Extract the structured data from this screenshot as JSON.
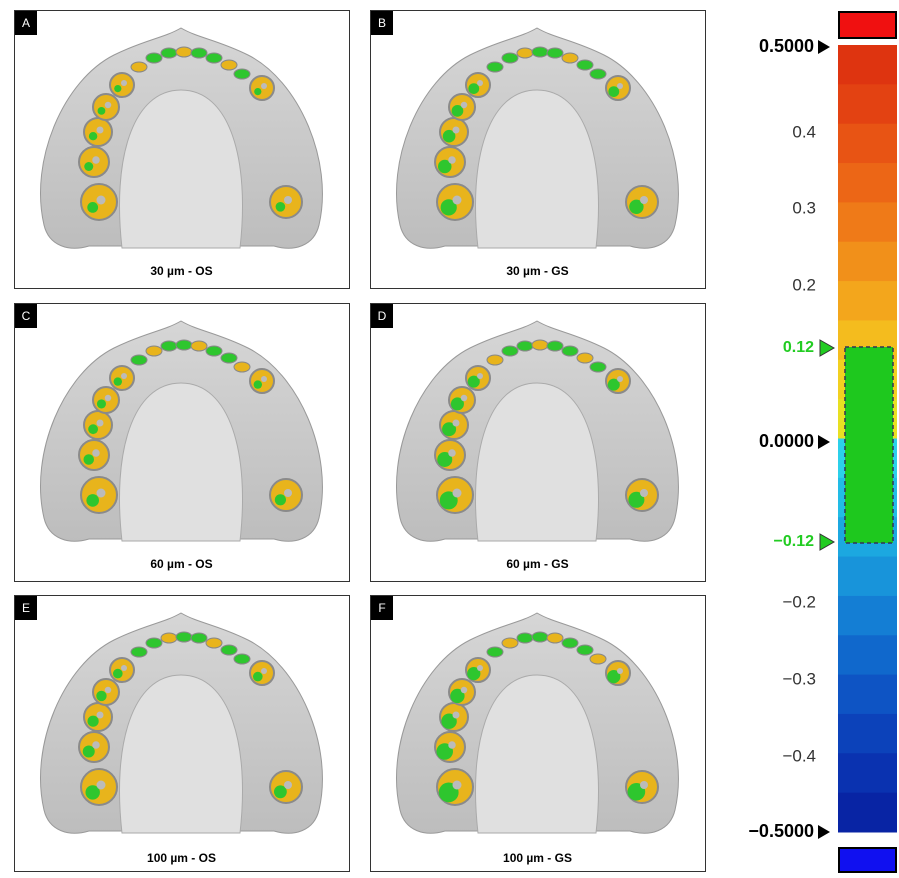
{
  "panels": [
    {
      "letter": "A",
      "caption": "30 µm - OS"
    },
    {
      "letter": "B",
      "caption": "30 µm - GS"
    },
    {
      "letter": "C",
      "caption": "60 µm - OS"
    },
    {
      "letter": "D",
      "caption": "60 µm - GS"
    },
    {
      "letter": "E",
      "caption": "100 µm - OS"
    },
    {
      "letter": "F",
      "caption": "100 µm - GS"
    }
  ],
  "scale": {
    "labels": [
      "0.5000",
      "0.4",
      "0.3",
      "0.2",
      "0.12",
      "0.0000",
      "−0.12",
      "−0.2",
      "−0.3",
      "−0.4",
      "−0.5000"
    ]
  }
}
